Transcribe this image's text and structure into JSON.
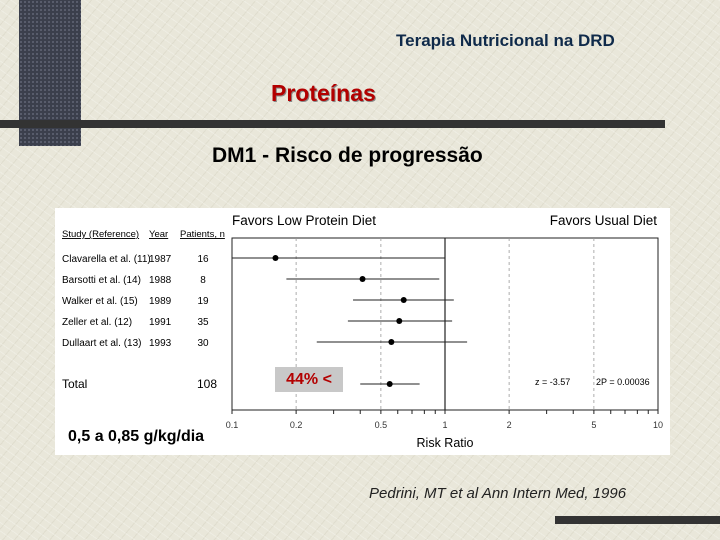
{
  "header": {
    "title": "Terapia Nutricional na DRD",
    "section": "Proteínas",
    "subtitle": "DM1 - Risco de progressão"
  },
  "annotation": {
    "badge": "44% <",
    "dose": "0,5 a 0,85 g/kg/dia"
  },
  "citation": "Pedrini, MT et al Ann Intern Med, 1996",
  "colors": {
    "accent": "#b30000",
    "title": "#0f2a4a",
    "bar": "#333333"
  },
  "chart_data": {
    "type": "forest",
    "left_label": "Favors Low Protein Diet",
    "right_label": "Favors Usual Diet",
    "xlabel": "Risk Ratio",
    "xscale": "log",
    "xlim": [
      0.1,
      10
    ],
    "xticks": [
      "0.1",
      "0.2",
      "0.5",
      "1",
      "2",
      "5",
      "10"
    ],
    "columns": [
      "Study (Reference)",
      "Year",
      "Patients, n"
    ],
    "studies": [
      {
        "study": "Clavarella et al. (11)",
        "year": "1987",
        "n": "16",
        "rr": 0.16,
        "lo": 0.1,
        "hi": 1.0
      },
      {
        "study": "Barsotti et al. (14)",
        "year": "1988",
        "n": "8",
        "rr": 0.41,
        "lo": 0.18,
        "hi": 0.94
      },
      {
        "study": "Walker et al. (15)",
        "year": "1989",
        "n": "19",
        "rr": 0.64,
        "lo": 0.37,
        "hi": 1.1
      },
      {
        "study": "Zeller et al. (12)",
        "year": "1991",
        "n": "35",
        "rr": 0.61,
        "lo": 0.35,
        "hi": 1.08
      },
      {
        "study": "Dullaart et al. (13)",
        "year": "1993",
        "n": "30",
        "rr": 0.56,
        "lo": 0.25,
        "hi": 1.27
      }
    ],
    "total": {
      "label": "Total",
      "n": "108",
      "rr": 0.55,
      "lo": 0.4,
      "hi": 0.76
    },
    "stats": {
      "z": "z = -3.57",
      "p": "2P = 0.00036"
    }
  }
}
